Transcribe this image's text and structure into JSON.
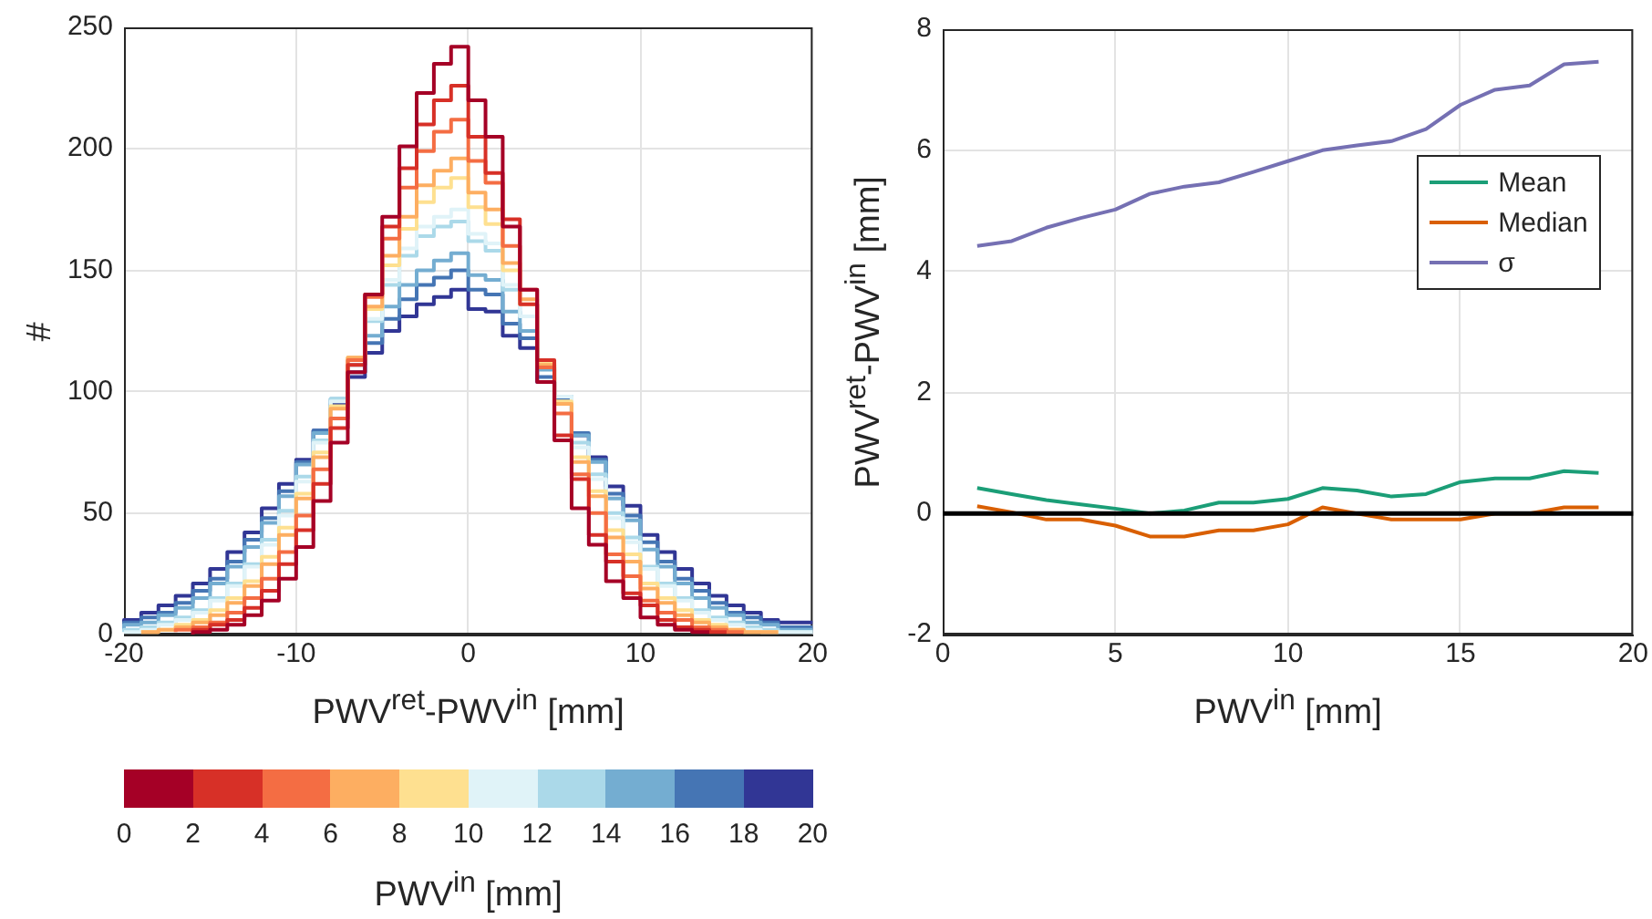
{
  "chart_data": [
    {
      "type": "step",
      "xlabel": "PWV$^{ret}$-PWV$^{in}$ [mm]",
      "ylabel": "#",
      "clabel": "PWV$^{in}$ [mm]",
      "clim": [
        0,
        20
      ],
      "cticks": [
        0,
        2,
        4,
        6,
        8,
        10,
        12,
        14,
        16,
        18,
        20
      ],
      "xlim": [
        -20,
        20
      ],
      "xticks": [
        -20,
        -10,
        0,
        10,
        20
      ],
      "ylim": [
        0,
        250
      ],
      "yticks": [
        0,
        50,
        100,
        150,
        200,
        250
      ],
      "grid": true,
      "x": [
        -20,
        -19,
        -18,
        -17,
        -16,
        -15,
        -14,
        -13,
        -12,
        -11,
        -10,
        -9,
        -8,
        -7,
        -6,
        -5,
        -4,
        -3,
        -2,
        -1,
        0,
        1,
        2,
        3,
        4,
        5,
        6,
        7,
        8,
        9,
        10,
        11,
        12,
        13,
        14,
        15,
        16,
        17,
        18,
        19,
        20
      ],
      "series": [
        {
          "color": "#a50026",
          "values": [
            null,
            null,
            null,
            null,
            0,
            1,
            2,
            4,
            8,
            14,
            23,
            36,
            55,
            79,
            108,
            140,
            172,
            201,
            223,
            235,
            242,
            220,
            205,
            168,
            142,
            104,
            80,
            52,
            37,
            22,
            15,
            7,
            4,
            2,
            1,
            null,
            null,
            null,
            null,
            null,
            null
          ]
        },
        {
          "color": "#d73027",
          "values": [
            null,
            null,
            null,
            null,
            1,
            2,
            4,
            6,
            11,
            18,
            29,
            43,
            62,
            85,
            111,
            140,
            168,
            192,
            210,
            220,
            226,
            205,
            190,
            171,
            136,
            113,
            82,
            64,
            41,
            30,
            17,
            12,
            6,
            3,
            2,
            1,
            null,
            null,
            null,
            null,
            null
          ]
        },
        {
          "color": "#f46d43",
          "values": [
            null,
            null,
            null,
            1,
            2,
            3,
            5,
            9,
            15,
            23,
            34,
            49,
            68,
            89,
            113,
            139,
            163,
            184,
            199,
            207,
            212,
            195,
            186,
            160,
            142,
            110,
            91,
            66,
            50,
            33,
            24,
            14,
            9,
            6,
            3,
            2,
            1,
            null,
            null,
            null,
            null
          ]
        },
        {
          "color": "#fdae61",
          "values": [
            null,
            1,
            1,
            2,
            3,
            5,
            8,
            13,
            20,
            29,
            41,
            56,
            73,
            93,
            114,
            135,
            156,
            172,
            185,
            191,
            196,
            182,
            175,
            153,
            138,
            111,
            95,
            71,
            57,
            40,
            30,
            19,
            13,
            8,
            5,
            3,
            2,
            1,
            1,
            null,
            null
          ]
        },
        {
          "color": "#fee090",
          "values": [
            null,
            1,
            1,
            2,
            4,
            6,
            10,
            15,
            22,
            32,
            44,
            58,
            75,
            94,
            114,
            134,
            152,
            167,
            178,
            184,
            188,
            176,
            169,
            150,
            136,
            112,
            96,
            73,
            59,
            43,
            33,
            21,
            15,
            10,
            6,
            4,
            2,
            1,
            1,
            null,
            null
          ]
        },
        {
          "color": "#e0f3f8",
          "values": [
            1,
            1,
            2,
            4,
            6,
            9,
            14,
            20,
            28,
            37,
            49,
            63,
            79,
            96,
            114,
            130,
            146,
            159,
            168,
            172,
            175,
            165,
            161,
            144,
            131,
            112,
            98,
            77,
            64,
            48,
            38,
            27,
            20,
            14,
            9,
            6,
            4,
            2,
            1,
            1,
            1
          ]
        },
        {
          "color": "#abd9e9",
          "values": [
            1,
            2,
            3,
            5,
            7,
            10,
            15,
            21,
            29,
            39,
            51,
            65,
            80,
            97,
            113,
            129,
            144,
            156,
            164,
            168,
            170,
            162,
            158,
            142,
            131,
            111,
            98,
            79,
            66,
            50,
            40,
            28,
            21,
            15,
            10,
            7,
            5,
            3,
            2,
            1,
            1
          ]
        },
        {
          "color": "#74add1",
          "values": [
            2,
            4,
            5,
            8,
            11,
            15,
            21,
            28,
            36,
            46,
            57,
            70,
            83,
            97,
            111,
            123,
            135,
            144,
            150,
            154,
            157,
            148,
            146,
            133,
            125,
            109,
            98,
            82,
            71,
            56,
            47,
            35,
            28,
            21,
            15,
            11,
            8,
            5,
            4,
            2,
            2
          ]
        },
        {
          "color": "#4575b4",
          "values": [
            3,
            5,
            7,
            9,
            13,
            18,
            23,
            30,
            39,
            48,
            59,
            71,
            84,
            96,
            108,
            120,
            130,
            138,
            144,
            147,
            150,
            142,
            140,
            128,
            122,
            106,
            97,
            83,
            72,
            58,
            49,
            38,
            30,
            23,
            18,
            13,
            9,
            7,
            5,
            3,
            3
          ]
        },
        {
          "color": "#313695",
          "values": [
            5,
            6,
            9,
            12,
            16,
            21,
            27,
            34,
            42,
            52,
            62,
            72,
            84,
            95,
            106,
            116,
            125,
            131,
            136,
            139,
            142,
            134,
            133,
            123,
            118,
            104,
            96,
            82,
            73,
            61,
            53,
            41,
            34,
            27,
            21,
            16,
            12,
            9,
            6,
            5,
            5
          ]
        }
      ]
    },
    {
      "type": "line",
      "xlabel": "PWV$^{in}$ [mm]",
      "ylabel": "PWV$^{ret}$-PWV$^{in}$ [mm]",
      "xlim": [
        0,
        20
      ],
      "xticks": [
        0,
        5,
        10,
        15,
        20
      ],
      "ylim": [
        -2,
        8
      ],
      "yticks": [
        -2,
        0,
        2,
        4,
        6,
        8
      ],
      "grid": true,
      "legend": "right",
      "x": [
        1,
        2,
        3,
        4,
        5,
        6,
        7,
        8,
        9,
        10,
        11,
        12,
        13,
        14,
        15,
        16,
        17,
        18,
        19
      ],
      "ref_lines": [
        {
          "axis": "y",
          "value": 0,
          "color": "#000000"
        }
      ],
      "series": [
        {
          "name": "Mean",
          "color": "#1b9e77",
          "values": [
            0.42,
            0.32,
            0.22,
            0.15,
            0.08,
            0.0,
            0.05,
            0.18,
            0.18,
            0.24,
            0.42,
            0.38,
            0.28,
            0.32,
            0.52,
            0.58,
            0.58,
            0.7,
            0.67
          ]
        },
        {
          "name": "Median",
          "color": "#d95f02",
          "values": [
            0.12,
            0.02,
            -0.1,
            -0.1,
            -0.2,
            -0.38,
            -0.38,
            -0.28,
            -0.28,
            -0.18,
            0.1,
            0.0,
            -0.1,
            -0.1,
            -0.1,
            0.0,
            0.0,
            0.1,
            0.1
          ]
        },
        {
          "name": "σ",
          "color": "#7570b3",
          "values": [
            4.42,
            4.5,
            4.72,
            4.88,
            5.02,
            5.28,
            5.4,
            5.47,
            5.64,
            5.82,
            6.0,
            6.08,
            6.15,
            6.35,
            6.75,
            7.0,
            7.07,
            7.42,
            7.46
          ]
        }
      ]
    }
  ]
}
